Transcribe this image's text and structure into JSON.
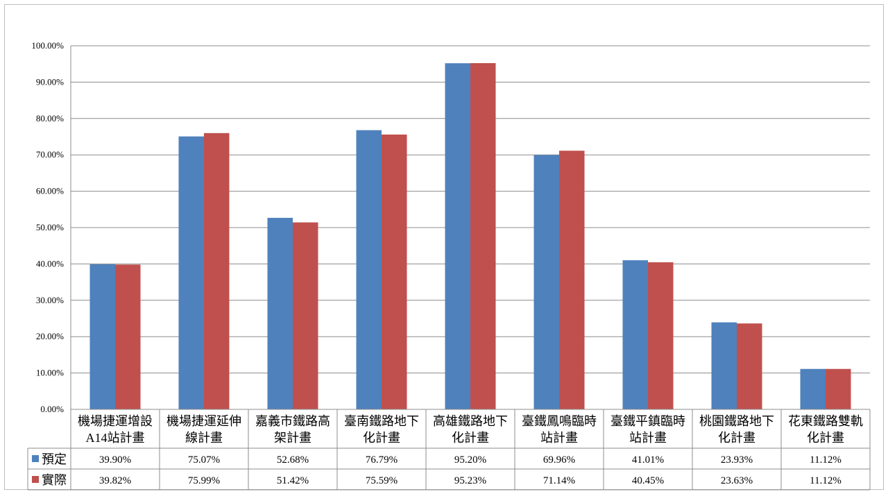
{
  "chart_data": {
    "type": "bar",
    "title": "",
    "xlabel": "",
    "ylabel": "",
    "ylim": [
      0,
      100
    ],
    "yticks": [
      "0.00%",
      "10.00%",
      "20.00%",
      "30.00%",
      "40.00%",
      "50.00%",
      "60.00%",
      "70.00%",
      "80.00%",
      "90.00%",
      "100.00%"
    ],
    "grid": true,
    "legend": "data-table",
    "categories": [
      [
        "機場捷運增設",
        "A14站計畫"
      ],
      [
        "機場捷運延伸",
        "線計畫"
      ],
      [
        "嘉義市鐵路高",
        "架計畫"
      ],
      [
        "臺南鐵路地下",
        "化計畫"
      ],
      [
        "高雄鐵路地下",
        "化計畫"
      ],
      [
        "臺鐵鳳鳴臨時",
        "站計畫"
      ],
      [
        "臺鐵平鎮臨時",
        "站計畫"
      ],
      [
        "桃園鐵路地下",
        "化計畫"
      ],
      [
        "花東鐵路雙軌",
        "化計畫"
      ]
    ],
    "series": [
      {
        "name": "預定",
        "color": "#4f81bd",
        "values": [
          39.9,
          75.07,
          52.68,
          76.79,
          95.2,
          69.96,
          41.01,
          23.93,
          11.12
        ],
        "labels": [
          "39.90%",
          "75.07%",
          "52.68%",
          "76.79%",
          "95.20%",
          "69.96%",
          "41.01%",
          "23.93%",
          "11.12%"
        ]
      },
      {
        "name": "實際",
        "color": "#c0504d",
        "values": [
          39.82,
          75.99,
          51.42,
          75.59,
          95.23,
          71.14,
          40.45,
          23.63,
          11.12
        ],
        "labels": [
          "39.82%",
          "75.99%",
          "51.42%",
          "75.59%",
          "95.23%",
          "71.14%",
          "40.45%",
          "23.63%",
          "11.12%"
        ]
      }
    ]
  }
}
